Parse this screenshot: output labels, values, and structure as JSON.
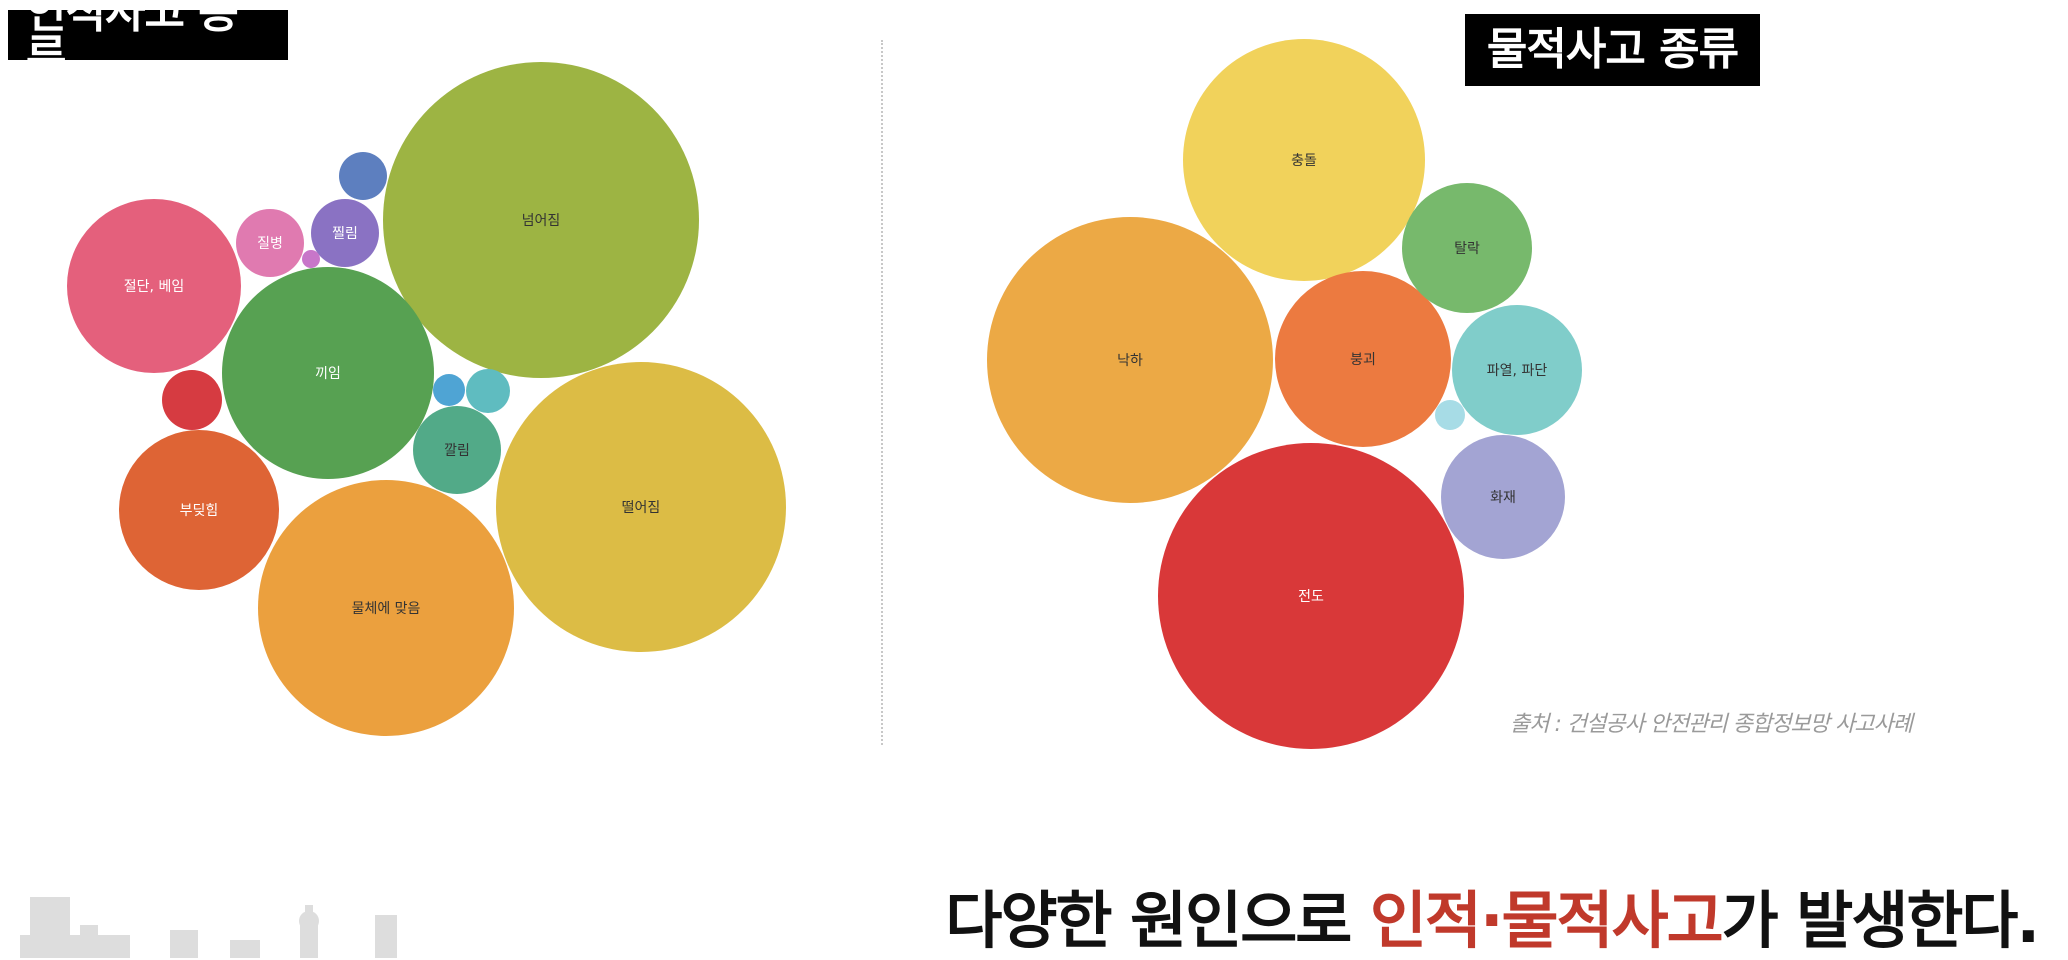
{
  "titles": {
    "left": "인적사고 종류",
    "right": "물적사고 종류"
  },
  "source": "출처 : 건설공사 안전관리 종합정보망 사고사례",
  "headline": {
    "part1": "다양한 원인으로 ",
    "highlight": "인적·물적사고",
    "part2": "가 발생한다."
  },
  "colors": {
    "highlight": "#c0392b"
  },
  "chart_data": [
    {
      "type": "bubble",
      "title": "인적사고 종류",
      "items": [
        {
          "name": "넘어짐",
          "r": 158,
          "color": "#9db443"
        },
        {
          "name": "떨어짐",
          "r": 145,
          "color": "#dcbc45"
        },
        {
          "name": "물체에 맞음",
          "r": 128,
          "color": "#eba03e"
        },
        {
          "name": "끼임",
          "r": 106,
          "color": "#57a152"
        },
        {
          "name": "절단, 베임",
          "r": 87,
          "color": "#e4607c"
        },
        {
          "name": "부딪힘",
          "r": 80,
          "color": "#de6435"
        },
        {
          "name": "깔림",
          "r": 44,
          "color": "#52aa88"
        },
        {
          "name": "질병",
          "r": 34,
          "color": "#e07ab0"
        },
        {
          "name": "찔림",
          "r": 34,
          "color": "#8a72c3"
        },
        {
          "name": "",
          "r": 30,
          "color": "#d63b41"
        },
        {
          "name": "",
          "r": 24,
          "color": "#5d7fbf"
        },
        {
          "name": "",
          "r": 22,
          "color": "#5fbcc0"
        },
        {
          "name": "",
          "r": 16,
          "color": "#4fa4d4"
        },
        {
          "name": "",
          "r": 9,
          "color": "#c876c9"
        }
      ]
    },
    {
      "type": "bubble",
      "title": "물적사고 종류",
      "items": [
        {
          "name": "전도",
          "r": 153,
          "color": "#d93839"
        },
        {
          "name": "낙하",
          "r": 143,
          "color": "#eca945"
        },
        {
          "name": "충돌",
          "r": 121,
          "color": "#f1d25b"
        },
        {
          "name": "붕괴",
          "r": 88,
          "color": "#ec7a40"
        },
        {
          "name": "파열, 파단",
          "r": 65,
          "color": "#80cdca"
        },
        {
          "name": "탈락",
          "r": 65,
          "color": "#77b96c"
        },
        {
          "name": "화재",
          "r": 62,
          "color": "#a3a4d3"
        },
        {
          "name": "",
          "r": 15,
          "color": "#a7dce6"
        }
      ]
    }
  ]
}
